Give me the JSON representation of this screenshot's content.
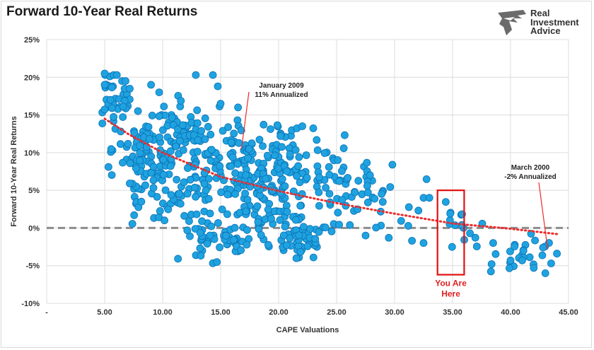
{
  "header": {
    "title": "Forward 10-Year Real Returns"
  },
  "logo": {
    "lines": [
      "Real",
      "Investment",
      "Advice"
    ]
  },
  "colors": {
    "dot": "#1fa3e0",
    "dot_edge": "#0b72b5",
    "trend": "#ee2b2b",
    "zero_line": "#8c8c8c",
    "box": "#e01010",
    "grid": "#dcdcdc"
  },
  "chart_data": {
    "type": "scatter",
    "xlabel": "CAPE Valuations",
    "ylabel": "Forward 10-Year Real Returns",
    "xlim": [
      0,
      45
    ],
    "ylim": [
      -10,
      25
    ],
    "x_ticks": [
      0,
      5,
      10,
      15,
      20,
      25,
      30,
      35,
      40,
      45
    ],
    "x_tick_labels": [
      "-",
      "5.00",
      "10.00",
      "15.00",
      "20.00",
      "25.00",
      "30.00",
      "35.00",
      "40.00",
      "45.00"
    ],
    "y_ticks": [
      -10,
      -5,
      0,
      5,
      10,
      15,
      20,
      25
    ],
    "y_tick_labels": [
      "-10%",
      "-5%",
      "0%",
      "5%",
      "10%",
      "15%",
      "20%",
      "25%"
    ],
    "grid": true,
    "reference_line": {
      "y": 0,
      "style": "dashed"
    },
    "trendline": {
      "style": "dotted",
      "points": [
        [
          5,
          14.5
        ],
        [
          7,
          12.5
        ],
        [
          10,
          10
        ],
        [
          15,
          6.8
        ],
        [
          20,
          4.9
        ],
        [
          25,
          3.3
        ],
        [
          30,
          1.9
        ],
        [
          35,
          0.6
        ],
        [
          40,
          -0.1
        ],
        [
          44,
          -0.8
        ]
      ]
    },
    "clusters": [
      {
        "cx": 6.0,
        "cy": 17.0,
        "sx": 0.8,
        "sy": 2.0,
        "n": 30
      },
      {
        "cx": 7.0,
        "cy": 11.0,
        "sx": 1.2,
        "sy": 2.0,
        "n": 25
      },
      {
        "cx": 9.0,
        "cy": 8.0,
        "sx": 1.3,
        "sy": 3.0,
        "n": 70
      },
      {
        "cx": 11.5,
        "cy": 12.5,
        "sx": 1.5,
        "sy": 3.0,
        "n": 70
      },
      {
        "cx": 12.5,
        "cy": 3.5,
        "sx": 1.6,
        "sy": 3.0,
        "n": 55
      },
      {
        "cx": 15.5,
        "cy": -1.5,
        "sx": 1.5,
        "sy": 1.6,
        "n": 45
      },
      {
        "cx": 15.5,
        "cy": 9.5,
        "sx": 2.0,
        "sy": 3.2,
        "n": 80
      },
      {
        "cx": 17.5,
        "cy": 4.0,
        "sx": 1.8,
        "sy": 2.6,
        "n": 55
      },
      {
        "cx": 20.5,
        "cy": 9.0,
        "sx": 2.0,
        "sy": 2.6,
        "n": 80
      },
      {
        "cx": 21.5,
        "cy": 3.0,
        "sx": 2.0,
        "sy": 2.6,
        "n": 55
      },
      {
        "cx": 22.0,
        "cy": -1.8,
        "sx": 1.5,
        "sy": 1.4,
        "n": 35
      },
      {
        "cx": 25.5,
        "cy": 6.5,
        "sx": 1.5,
        "sy": 2.2,
        "n": 40
      },
      {
        "cx": 30.0,
        "cy": 2.5,
        "sx": 2.2,
        "sy": 2.2,
        "n": 20
      },
      {
        "cx": 36.0,
        "cy": 0.2,
        "sx": 1.5,
        "sy": 1.2,
        "n": 12
      },
      {
        "cx": 41.5,
        "cy": -3.5,
        "sx": 1.4,
        "sy": 1.2,
        "n": 22
      }
    ],
    "points": [
      [
        5.0,
        20.5
      ],
      [
        5.0,
        19.0
      ],
      [
        5.5,
        17.0
      ],
      [
        6.5,
        19.5
      ],
      [
        6.8,
        19.5
      ],
      [
        9.0,
        19.0
      ],
      [
        9.7,
        18.0
      ],
      [
        15.0,
        16.5
      ],
      [
        16.5,
        16.0
      ],
      [
        32.5,
        4.0
      ],
      [
        33.0,
        4.0
      ],
      [
        34.8,
        1.9
      ],
      [
        31.5,
        -1.7
      ],
      [
        32.5,
        -2.0
      ],
      [
        38.5,
        -2.0
      ],
      [
        40.0,
        -4.3
      ],
      [
        41.0,
        -4.3
      ],
      [
        42.0,
        -5.3
      ],
      [
        43.0,
        -6.0
      ],
      [
        43.5,
        -4.7
      ],
      [
        44.0,
        -3.4
      ],
      [
        42.8,
        -2.6
      ],
      [
        35.8,
        0.4
      ],
      [
        36.5,
        -0.7
      ],
      [
        29.5,
        -1.3
      ],
      [
        27.5,
        -1.0
      ]
    ],
    "annotations": [
      {
        "lines": [
          "January 2009",
          "11% Annualized"
        ],
        "x": 16.8,
        "y": 10.5
      },
      {
        "lines": [
          "March 2000",
          "-2% Annualized"
        ],
        "x": 43.2,
        "y": -2.8
      }
    ],
    "highlight": {
      "x_range": [
        33.7,
        36.0
      ],
      "y_range": [
        -6.2,
        5.0
      ],
      "label_lines": [
        "You Are",
        "Here"
      ]
    }
  }
}
